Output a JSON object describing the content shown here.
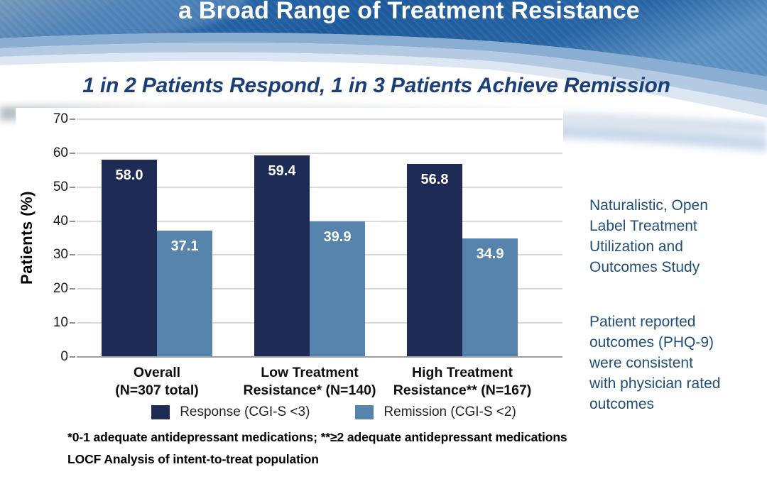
{
  "slide": {
    "title": "a Broad Range of Treatment Resistance",
    "subtitle": "1 in 2 Patients Respond, 1 in 3 Patients Achieve Remission"
  },
  "chart_data": {
    "type": "bar",
    "ylabel": "Patients (%)",
    "ylim": [
      0,
      70
    ],
    "ytick_step": 10,
    "grid": true,
    "legend_position": "bottom",
    "categories": [
      "Overall\n(N=307 total)",
      "Low Treatment\nResistance* (N=140)",
      "High Treatment\nResistance** (N=167)"
    ],
    "series": [
      {
        "name": "Response (CGI-S <3)",
        "color": "#1e2b55",
        "values": [
          58.0,
          59.4,
          56.8
        ]
      },
      {
        "name": "Remission (CGI-S <2)",
        "color": "#5684ad",
        "values": [
          37.1,
          39.9,
          34.9
        ]
      }
    ]
  },
  "side_notes": {
    "note1": "Naturalistic, Open\nLabel Treatment\nUtilization and\nOutcomes Study",
    "note2": "Patient reported\noutcomes (PHQ-9)\nwere consistent\nwith physician rated\noutcomes"
  },
  "footnotes": {
    "line1": "*0-1 adequate antidepressant medications; **≥2 adequate antidepressant medications",
    "line2": "LOCF Analysis of intent-to-treat population"
  },
  "colors": {
    "title_text": "#ffffff",
    "subtitle_text": "#1b3f78",
    "side_note_text": "#1f4e79",
    "response_bar": "#1e2b55",
    "remission_bar": "#5684ad",
    "header_blue": "#2a69ab"
  }
}
